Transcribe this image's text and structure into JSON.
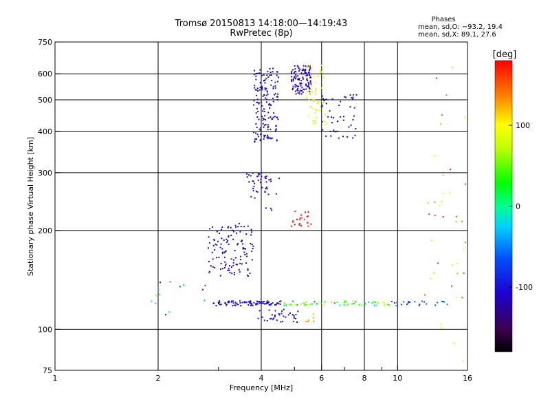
{
  "chart_data": {
    "type": "scatter",
    "title": "Tromsø 20150813 14:18:00—14:19:43",
    "subtitle": "RwPretec (8p)",
    "xlabel": "Frequency [MHz]",
    "ylabel": "Stationary phase Virtual Height [km]",
    "x_scale": "log",
    "y_scale": "log",
    "xlim": [
      1,
      16
    ],
    "ylim": [
      75,
      750
    ],
    "x_ticks": [
      1,
      2,
      4,
      6,
      8,
      10,
      16
    ],
    "x_tick_labels": [
      "1",
      "2",
      "4",
      "6",
      "8",
      "10",
      "16"
    ],
    "x_minor_ticks": [
      3,
      5,
      7,
      9
    ],
    "y_ticks": [
      75,
      100,
      200,
      300,
      400,
      500,
      600,
      750
    ],
    "y_tick_labels": [
      "75",
      "100",
      "200",
      "300",
      "400",
      "500",
      "600",
      "750"
    ],
    "grid": true,
    "colorbar": {
      "label": "[deg]",
      "range": [
        -180,
        180
      ],
      "ticks": [
        100,
        0,
        -100
      ],
      "tick_labels": [
        "100",
        "0",
        "-100"
      ]
    },
    "stats": {
      "title": "Phases",
      "line1": "mean, sd,O: −93.2, 19.4",
      "line2": "mean, sd,X:  89.1, 27.6"
    },
    "clusters": [
      {
        "fx": [
          3.8,
          4.5
        ],
        "hy": [
          370,
          630
        ],
        "count": 160,
        "phase": [
          -120,
          -95
        ]
      },
      {
        "fx": [
          4.9,
          5.6
        ],
        "hy": [
          520,
          640
        ],
        "count": 110,
        "phase": [
          -120,
          -95
        ]
      },
      {
        "fx": [
          5.4,
          6.2
        ],
        "hy": [
          420,
          640
        ],
        "count": 55,
        "phase": [
          55,
          110
        ]
      },
      {
        "fx": [
          6.0,
          7.6
        ],
        "hy": [
          380,
          520
        ],
        "count": 50,
        "phase": [
          -130,
          -100
        ]
      },
      {
        "fx": [
          3.6,
          4.2
        ],
        "hy": [
          250,
          300
        ],
        "count": 35,
        "phase": [
          -120,
          -95
        ]
      },
      {
        "fx": [
          4.1,
          4.6
        ],
        "hy": [
          230,
          290
        ],
        "count": 10,
        "phase": [
          -120,
          -95
        ]
      },
      {
        "fx": [
          4.9,
          5.6
        ],
        "hy": [
          205,
          230
        ],
        "count": 22,
        "phase": [
          160,
          190
        ]
      },
      {
        "fx": [
          2.8,
          3.8
        ],
        "hy": [
          145,
          210
        ],
        "count": 120,
        "phase": [
          -125,
          -95
        ]
      },
      {
        "fx": [
          2.9,
          4.6
        ],
        "hy": [
          118,
          122
        ],
        "count": 90,
        "phase": [
          -120,
          -95
        ]
      },
      {
        "fx": [
          4.6,
          9.5
        ],
        "hy": [
          118,
          122
        ],
        "count": 70,
        "phase": [
          -60,
          120
        ]
      },
      {
        "fx": [
          3.9,
          5.2
        ],
        "hy": [
          105,
          115
        ],
        "count": 35,
        "phase": [
          -120,
          -95
        ]
      },
      {
        "fx": [
          5.4,
          5.7
        ],
        "hy": [
          105,
          112
        ],
        "count": 6,
        "phase": [
          110,
          140
        ]
      },
      {
        "fx": [
          9.5,
          14.0
        ],
        "hy": [
          118,
          122
        ],
        "count": 22,
        "phase": [
          -95,
          -40
        ]
      },
      {
        "fx": [
          12.0,
          15.8
        ],
        "hy": [
          80,
          640
        ],
        "count": 40,
        "phase": [
          60,
          180
        ]
      },
      {
        "fx": [
          1.8,
          2.8
        ],
        "hy": [
          110,
          140
        ],
        "count": 14,
        "phase": [
          -120,
          110
        ]
      }
    ]
  }
}
